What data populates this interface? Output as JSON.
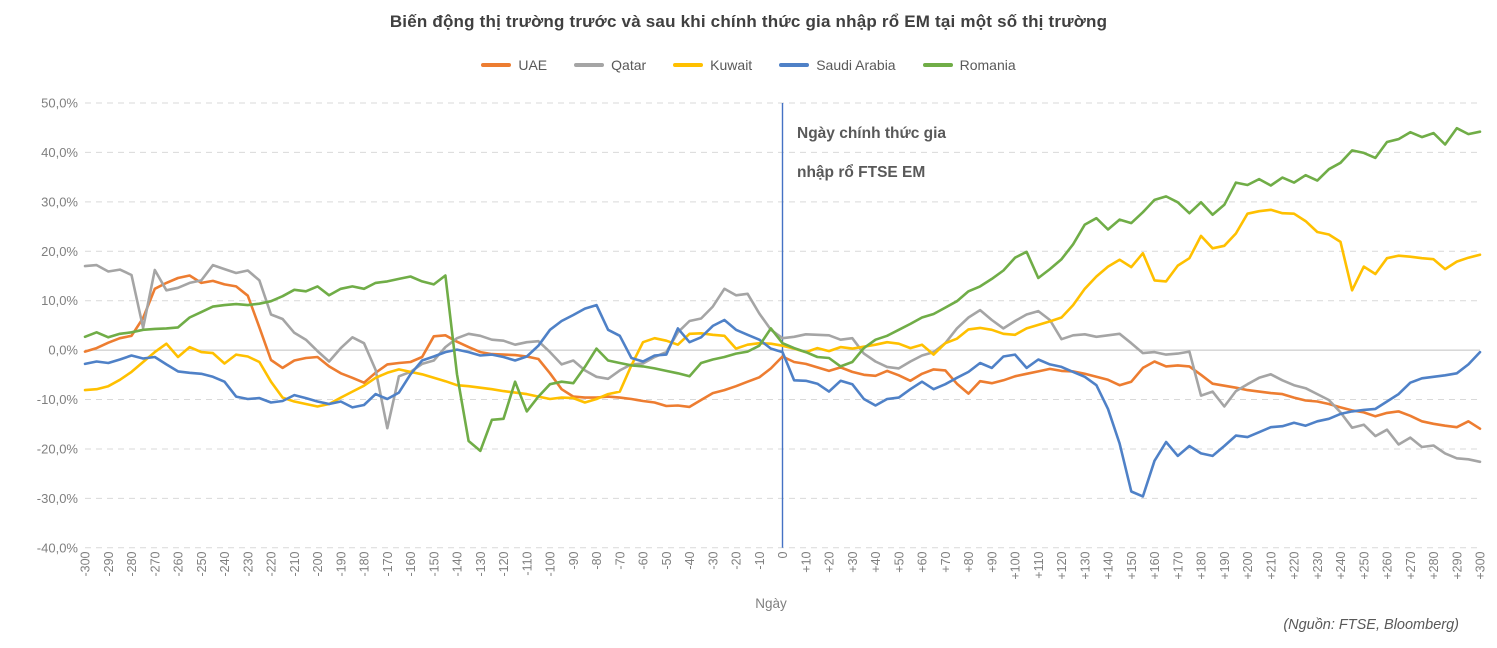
{
  "title": "Biến động thị trường trước và sau khi chính thức gia nhập rổ EM tại một số thị trường",
  "annotation": {
    "line1": "Ngày chính thức gia",
    "line2": "nhập rổ FTSE EM"
  },
  "xlabel": "Ngày",
  "source": "(Nguồn:  FTSE, Bloomberg)",
  "colors": {
    "uae": "#ED7D31",
    "qatar": "#A5A5A5",
    "kuwait": "#FFC000",
    "saudi_arabia": "#4F81C7",
    "romania": "#70AD47",
    "event_line": "#4472C4",
    "gridline": "#d9d9d9",
    "zero_line": "#c1c1c1",
    "axis_text": "#7f7f7f"
  },
  "chart_data": {
    "type": "line",
    "title": "Biến động thị trường trước và sau khi chính thức gia nhập rổ EM tại một số thị trường",
    "xlabel": "Ngày",
    "ylabel": "",
    "xlim": [
      -300,
      300
    ],
    "ylim": [
      -40,
      50
    ],
    "x_start": -300,
    "x_step": 5,
    "x_tick_step": 10,
    "x_tick_prefix_positive": "+",
    "y_ticks": [
      50,
      40,
      30,
      20,
      10,
      0,
      -10,
      -20,
      -30,
      -40
    ],
    "y_tick_labels": [
      "50,0%",
      "40,0%",
      "30,0%",
      "20,0%",
      "10,0%",
      "0,0%",
      "-10,0%",
      "-20,0%",
      "-30,0%",
      "-40,0%"
    ],
    "grid": "dashed-horizontal",
    "legend_position": "top",
    "event_line": {
      "x": 0,
      "label": [
        "Ngày chính thức gia",
        "nhập rổ FTSE EM"
      ],
      "color": "#4472C4"
    },
    "series": [
      {
        "name": "UAE",
        "color": "#ED7D31",
        "values": [
          -0.3,
          0.4,
          1.5,
          2.4,
          2.9,
          6.5,
          12.4,
          13.6,
          14.6,
          15.1,
          13.6,
          14.0,
          13.3,
          12.9,
          11.0,
          4.6,
          -2.0,
          -3.6,
          -2.1,
          -1.6,
          -1.4,
          -3.3,
          -4.7,
          -5.6,
          -6.6,
          -4.6,
          -2.9,
          -2.6,
          -2.4,
          -1.4,
          2.8,
          3.0,
          1.7,
          0.6,
          -0.4,
          -0.8,
          -0.9,
          -1.0,
          -1.3,
          -1.8,
          -4.7,
          -7.9,
          -9.4,
          -9.6,
          -9.6,
          -9.4,
          -9.6,
          -9.9,
          -10.3,
          -10.6,
          -11.3,
          -11.2,
          -11.5,
          -10.1,
          -8.7,
          -8.1,
          -7.3,
          -6.4,
          -5.5,
          -3.7,
          -1.3,
          -2.4,
          -2.8,
          -3.5,
          -4.2,
          -3.5,
          -4.4,
          -5.0,
          -5.2,
          -4.2,
          -5.1,
          -6.2,
          -4.8,
          -3.9,
          -4.1,
          -6.8,
          -8.8,
          -6.3,
          -6.7,
          -6.1,
          -5.3,
          -4.8,
          -4.3,
          -3.8,
          -4.2,
          -4.3,
          -4.8,
          -5.4,
          -6.0,
          -7.1,
          -6.4,
          -3.6,
          -2.3,
          -3.3,
          -3.1,
          -3.3,
          -5.0,
          -6.8,
          -7.2,
          -7.6,
          -8.1,
          -8.4,
          -8.7,
          -8.9,
          -9.6,
          -10.2,
          -10.4,
          -10.9,
          -11.6,
          -12.2,
          -12.6,
          -13.4,
          -12.7,
          -12.4,
          -13.3,
          -14.4,
          -14.9,
          -15.3,
          -15.6,
          -14.4,
          -15.9
        ]
      },
      {
        "name": "Qatar",
        "color": "#A5A5A5",
        "values": [
          17.0,
          17.2,
          15.9,
          16.3,
          15.2,
          4.5,
          16.2,
          12.1,
          12.6,
          13.6,
          14.1,
          17.2,
          16.4,
          15.6,
          16.1,
          14.1,
          7.2,
          6.3,
          3.5,
          2.1,
          -0.2,
          -2.3,
          0.4,
          2.6,
          1.4,
          -4.0,
          -15.8,
          -5.3,
          -4.4,
          -2.8,
          -2.1,
          0.6,
          2.4,
          3.3,
          2.9,
          2.1,
          1.9,
          1.1,
          1.6,
          1.8,
          -0.4,
          -2.9,
          -2.1,
          -4.1,
          -5.4,
          -5.8,
          -4.1,
          -2.9,
          -2.7,
          -1.4,
          -0.4,
          3.6,
          5.9,
          6.4,
          8.8,
          12.4,
          11.1,
          11.4,
          7.4,
          4.1,
          2.4,
          2.7,
          3.2,
          3.1,
          3.0,
          2.1,
          2.4,
          -0.7,
          -2.3,
          -3.4,
          -3.7,
          -2.3,
          -1.1,
          -0.4,
          1.4,
          4.4,
          6.6,
          8.1,
          6.1,
          4.4,
          5.9,
          7.2,
          7.9,
          6.1,
          2.2,
          3.0,
          3.2,
          2.7,
          3.0,
          3.3,
          1.4,
          -0.6,
          -0.4,
          -0.9,
          -0.7,
          -0.3,
          -9.2,
          -8.4,
          -11.4,
          -8.3,
          -6.9,
          -5.6,
          -4.9,
          -6.1,
          -7.1,
          -7.7,
          -8.9,
          -10.1,
          -12.6,
          -15.7,
          -15.1,
          -17.4,
          -16.1,
          -19.1,
          -17.7,
          -19.6,
          -19.3,
          -20.9,
          -21.9,
          -22.1,
          -22.6
        ]
      },
      {
        "name": "Kuwait",
        "color": "#FFC000",
        "values": [
          -8.1,
          -7.9,
          -7.3,
          -6.0,
          -4.4,
          -2.4,
          -0.4,
          1.3,
          -1.4,
          0.6,
          -0.4,
          -0.6,
          -2.7,
          -0.9,
          -1.3,
          -2.4,
          -6.4,
          -9.6,
          -10.4,
          -10.9,
          -11.4,
          -10.9,
          -9.6,
          -8.4,
          -7.2,
          -5.6,
          -4.6,
          -3.9,
          -4.4,
          -4.9,
          -5.6,
          -6.3,
          -7.1,
          -7.3,
          -7.6,
          -7.9,
          -8.3,
          -8.6,
          -8.9,
          -9.4,
          -9.9,
          -9.6,
          -9.7,
          -10.6,
          -9.9,
          -8.9,
          -8.4,
          -3.1,
          1.6,
          2.4,
          1.9,
          1.1,
          3.3,
          3.4,
          3.1,
          2.9,
          0.3,
          1.1,
          1.4,
          1.3,
          0.9,
          0.3,
          -0.4,
          0.4,
          -0.2,
          0.6,
          0.3,
          0.7,
          1.1,
          1.6,
          1.3,
          0.4,
          1.1,
          -0.9,
          1.4,
          2.3,
          4.2,
          4.5,
          4.1,
          3.3,
          3.1,
          4.4,
          5.1,
          5.8,
          6.6,
          9.1,
          12.4,
          14.9,
          16.9,
          18.3,
          16.8,
          19.6,
          14.1,
          13.9,
          17.1,
          18.6,
          23.1,
          20.6,
          21.1,
          23.6,
          27.6,
          28.1,
          28.4,
          27.7,
          27.6,
          26.1,
          23.9,
          23.4,
          21.9,
          12.1,
          16.9,
          15.4,
          18.6,
          19.1,
          18.9,
          18.6,
          18.4,
          16.4,
          17.9,
          18.7,
          19.3
        ]
      },
      {
        "name": "Saudi Arabia",
        "color": "#4F81C7",
        "values": [
          -2.8,
          -2.3,
          -2.6,
          -1.9,
          -1.1,
          -1.7,
          -1.4,
          -2.9,
          -4.3,
          -4.6,
          -4.8,
          -5.4,
          -6.4,
          -9.4,
          -9.9,
          -9.7,
          -10.6,
          -10.3,
          -9.1,
          -9.7,
          -10.4,
          -10.9,
          -10.4,
          -11.6,
          -11.1,
          -8.9,
          -9.9,
          -8.6,
          -4.9,
          -2.1,
          -1.3,
          -0.4,
          0.1,
          -0.4,
          -1.1,
          -0.9,
          -1.4,
          -2.1,
          -1.3,
          0.9,
          4.1,
          5.9,
          7.1,
          8.4,
          9.1,
          4.1,
          2.9,
          -1.6,
          -2.3,
          -1.1,
          -0.9,
          4.4,
          1.6,
          2.6,
          4.9,
          6.1,
          4.1,
          3.1,
          2.1,
          0.3,
          -0.4,
          -6.1,
          -6.2,
          -6.8,
          -8.4,
          -6.2,
          -6.9,
          -9.9,
          -11.2,
          -9.9,
          -9.6,
          -7.9,
          -6.4,
          -7.9,
          -6.9,
          -5.6,
          -4.4,
          -2.6,
          -3.6,
          -1.3,
          -0.9,
          -3.6,
          -1.9,
          -2.9,
          -3.4,
          -4.4,
          -5.4,
          -7.1,
          -11.9,
          -18.9,
          -28.6,
          -29.6,
          -22.4,
          -18.6,
          -21.4,
          -19.4,
          -20.9,
          -21.4,
          -19.4,
          -17.3,
          -17.6,
          -16.6,
          -15.6,
          -15.4,
          -14.7,
          -15.3,
          -14.4,
          -13.9,
          -12.9,
          -12.4,
          -12.1,
          -11.9,
          -10.4,
          -8.9,
          -6.6,
          -5.7,
          -5.4,
          -5.1,
          -4.7,
          -2.9,
          -0.4
        ]
      },
      {
        "name": "Romania",
        "color": "#70AD47",
        "values": [
          2.7,
          3.6,
          2.6,
          3.3,
          3.6,
          4.1,
          4.3,
          4.4,
          4.6,
          6.6,
          7.7,
          8.8,
          9.1,
          9.3,
          9.1,
          9.4,
          9.9,
          10.9,
          12.2,
          11.9,
          12.9,
          11.1,
          12.4,
          12.9,
          12.4,
          13.6,
          13.9,
          14.4,
          14.9,
          13.9,
          13.3,
          15.1,
          -4.9,
          -18.4,
          -20.4,
          -14.1,
          -13.9,
          -6.4,
          -12.4,
          -9.4,
          -6.9,
          -6.4,
          -6.7,
          -3.4,
          0.3,
          -2.1,
          -2.6,
          -3.1,
          -3.3,
          -3.7,
          -4.2,
          -4.7,
          -5.3,
          -2.6,
          -1.9,
          -1.4,
          -0.7,
          -0.3,
          0.9,
          4.4,
          1.4,
          0.4,
          -0.4,
          -1.4,
          -1.6,
          -3.3,
          -2.4,
          0.4,
          2.1,
          2.9,
          4.1,
          5.3,
          6.6,
          7.3,
          8.6,
          9.9,
          11.9,
          12.9,
          14.4,
          16.1,
          18.7,
          19.9,
          14.6,
          16.4,
          18.4,
          21.4,
          25.4,
          26.7,
          24.4,
          26.4,
          25.7,
          27.9,
          30.4,
          31.1,
          29.9,
          27.7,
          29.9,
          27.4,
          29.4,
          33.9,
          33.4,
          34.6,
          33.3,
          34.9,
          33.9,
          35.4,
          34.3,
          36.6,
          37.9,
          40.4,
          39.9,
          38.9,
          42.1,
          42.7,
          44.1,
          43.1,
          43.9,
          41.6,
          44.9,
          43.7,
          44.2
        ]
      }
    ]
  }
}
